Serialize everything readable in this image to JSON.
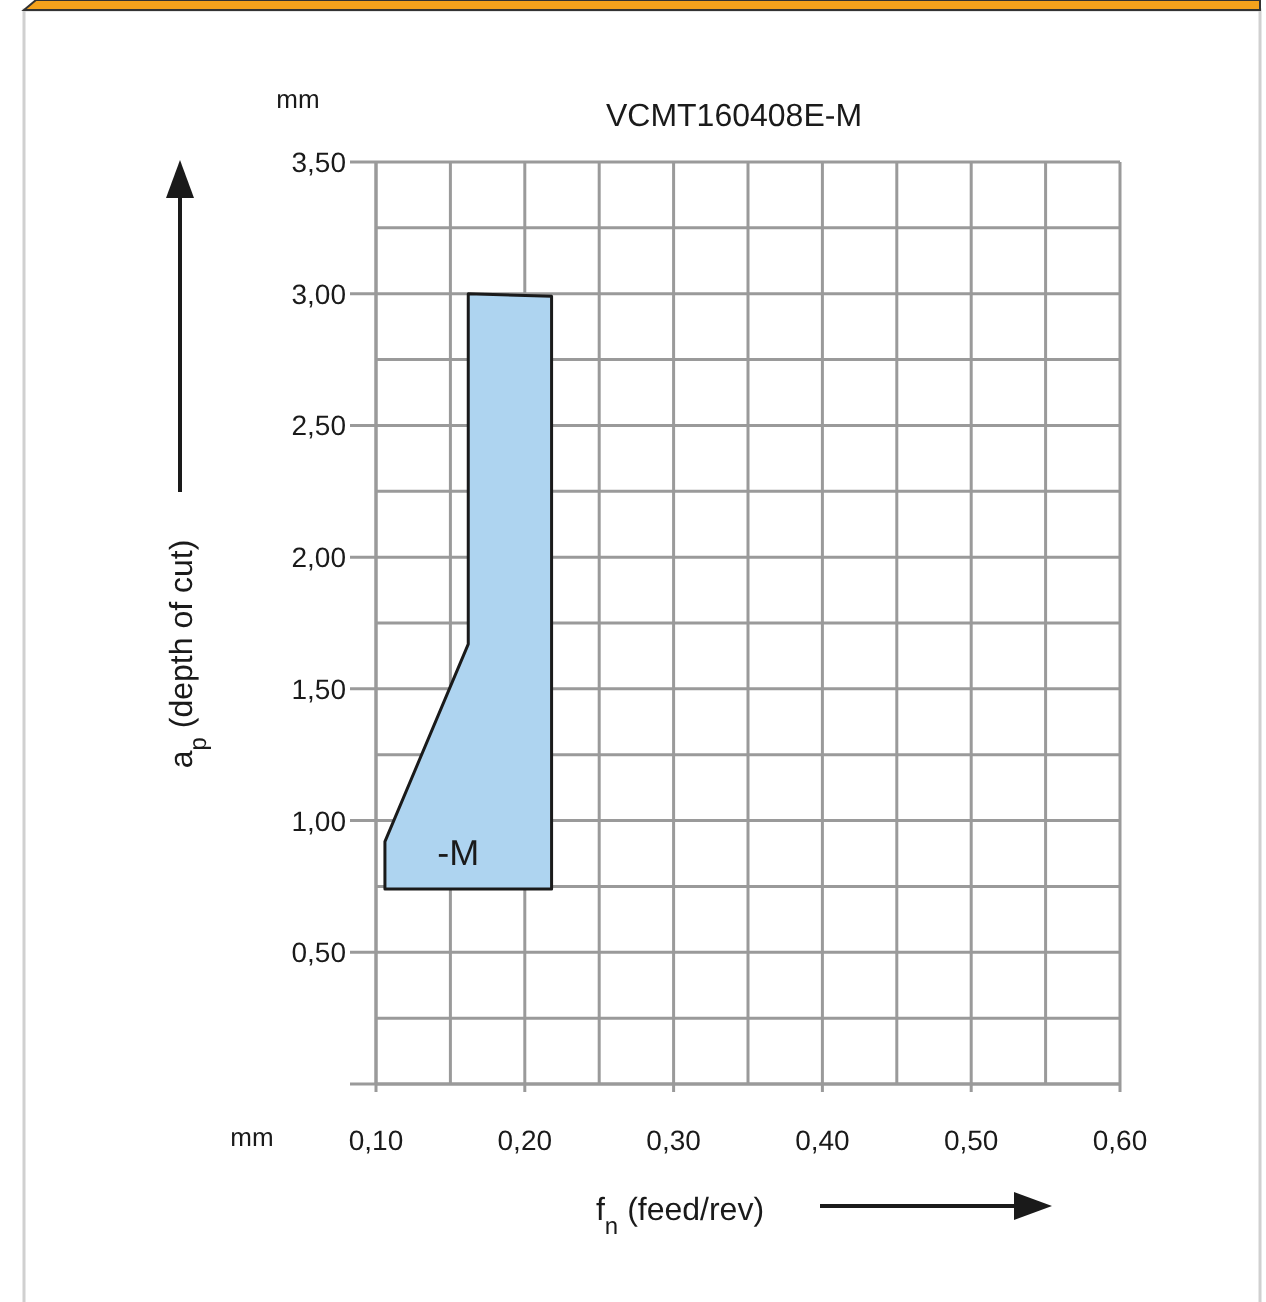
{
  "chart_data": {
    "type": "area",
    "title": "VCMT160408E-M",
    "xlabel": "f$_{n}$ (feed/rev)",
    "ylabel": "a$_{p}$ (depth of cut)",
    "annotations": [
      "mm",
      "mm"
    ],
    "series": [
      {
        "name": "-M",
        "color": "#aed4f0",
        "x": [
          0.106,
          0.106,
          0.162,
          0.162,
          0.218,
          0.218
        ],
        "values": [
          0.74,
          0.92,
          1.67,
          3.0,
          2.99,
          0.74
        ]
      }
    ],
    "xlim": [
      0.1,
      0.6
    ],
    "xticks": [
      {
        "value": 0.1,
        "label": "0,10"
      },
      {
        "value": 0.15,
        "label": null
      },
      {
        "value": 0.2,
        "label": "0,20"
      },
      {
        "value": 0.25,
        "label": null
      },
      {
        "value": 0.3,
        "label": "0,30"
      },
      {
        "value": 0.35,
        "label": null
      },
      {
        "value": 0.4,
        "label": "0,40"
      },
      {
        "value": 0.45,
        "label": null
      },
      {
        "value": 0.5,
        "label": "0,50"
      },
      {
        "value": 0.55,
        "label": null
      },
      {
        "value": 0.6,
        "label": "0,60"
      }
    ],
    "ylim": [
      0,
      3.5
    ],
    "yticks": [
      {
        "value": 0,
        "label": null
      },
      {
        "value": 0.25,
        "label": null
      },
      {
        "value": 0.5,
        "label": "0,50"
      },
      {
        "value": 0.75,
        "label": null
      },
      {
        "value": 1,
        "label": "1,00"
      },
      {
        "value": 1.25,
        "label": null
      },
      {
        "value": 1.5,
        "label": "1,50"
      },
      {
        "value": 1.75,
        "label": null
      },
      {
        "value": 2,
        "label": "2,00"
      },
      {
        "value": 2.25,
        "label": null
      },
      {
        "value": 2.5,
        "label": "2,50"
      },
      {
        "value": 2.75,
        "label": null
      },
      {
        "value": 3,
        "label": "3,00"
      },
      {
        "value": 3.25,
        "label": null
      },
      {
        "value": 3.5,
        "label": "3,50"
      }
    ],
    "grid": true
  }
}
